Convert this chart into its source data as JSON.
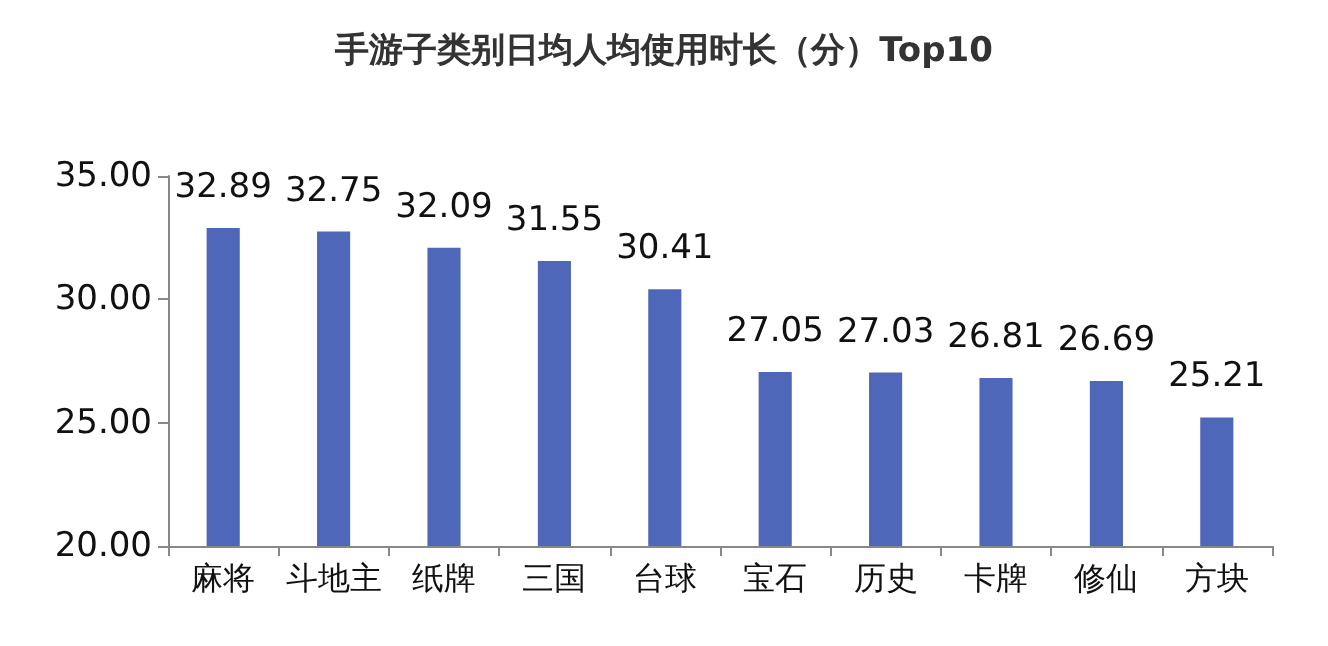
{
  "chart_data": {
    "type": "bar",
    "title": "手游子类别日均人均使用时长（分）Top10",
    "categories": [
      "麻将",
      "斗地主",
      "纸牌",
      "三国",
      "台球",
      "宝石",
      "历史",
      "卡牌",
      "修仙",
      "方块"
    ],
    "values": [
      32.89,
      32.75,
      32.09,
      31.55,
      30.41,
      27.05,
      27.03,
      26.81,
      26.69,
      25.21
    ],
    "color": "#4f67b8",
    "ylim": [
      20,
      35
    ],
    "yticks": [
      {
        "value": 20,
        "label": "20.00"
      },
      {
        "value": 25,
        "label": "25.00"
      },
      {
        "value": 30,
        "label": "30.00"
      },
      {
        "value": 35,
        "label": "35.00"
      }
    ],
    "data_labels": true,
    "grid": false
  }
}
